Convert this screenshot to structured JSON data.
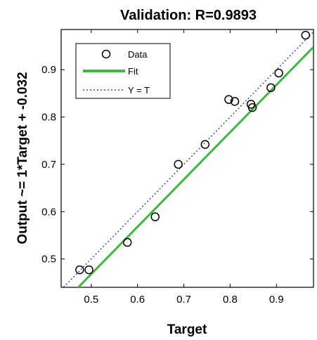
{
  "chart_data": {
    "type": "scatter",
    "title": "Validation: R=0.9893",
    "xlabel": "Target",
    "ylabel": "Output ~= 1*Target + -0.032",
    "xlim": [
      0.435,
      0.98
    ],
    "ylim": [
      0.44,
      0.985
    ],
    "xticks": [
      "0.5",
      "0.6",
      "0.7",
      "0.8",
      "0.9"
    ],
    "yticks": [
      "0.5",
      "0.6",
      "0.7",
      "0.8",
      "0.9"
    ],
    "grid": false,
    "legend_position": "top-left",
    "legend": [
      "Data",
      "Fit",
      "Y = T"
    ],
    "series": [
      {
        "name": "Data",
        "kind": "scatter",
        "x": [
          0.475,
          0.495,
          0.578,
          0.638,
          0.688,
          0.746,
          0.797,
          0.81,
          0.845,
          0.848,
          0.888,
          0.905,
          0.963
        ],
        "y": [
          0.477,
          0.477,
          0.535,
          0.589,
          0.7,
          0.742,
          0.837,
          0.833,
          0.827,
          0.82,
          0.862,
          0.893,
          0.973
        ]
      },
      {
        "name": "Fit",
        "kind": "line",
        "slope": 1,
        "intercept": -0.032
      },
      {
        "name": "Y = T",
        "kind": "line",
        "slope": 1,
        "intercept": 0
      }
    ],
    "colors": {
      "fit": "#3fb73f",
      "identity": "#3a4a9a",
      "markers": "#000000",
      "axes": "#000000",
      "background": "#ffffff"
    }
  }
}
